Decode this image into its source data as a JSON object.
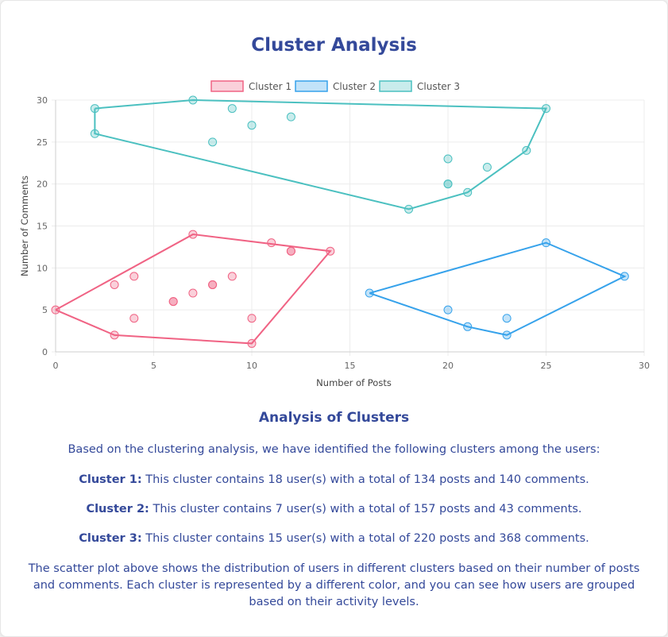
{
  "page": {
    "title": "Cluster Analysis",
    "analysis_heading": "Analysis of Clusters",
    "intro": "Based on the clustering analysis, we have identified the following clusters among the users:",
    "clusters": [
      {
        "label": "Cluster 1:",
        "text": "This cluster contains 18 user(s) with a total of 134 posts and 140 comments."
      },
      {
        "label": "Cluster 2:",
        "text": "This cluster contains 7 user(s) with a total of 157 posts and 43 comments."
      },
      {
        "label": "Cluster 3:",
        "text": "This cluster contains 15 user(s) with a total of 220 posts and 368 comments."
      }
    ],
    "conclusion": "The scatter plot above shows the distribution of users in different clusters based on their number of posts and comments. Each cluster is represented by a different color, and you can see how users are grouped based on their activity levels."
  },
  "chart_data": {
    "type": "scatter",
    "xlabel": "Number of Posts",
    "ylabel": "Number of Comments",
    "xlim": [
      0,
      30
    ],
    "ylim": [
      0,
      30
    ],
    "xticks": [
      0,
      5,
      10,
      15,
      20,
      25,
      30
    ],
    "yticks": [
      0,
      5,
      10,
      15,
      20,
      25,
      30
    ],
    "grid": true,
    "legend_position": "top",
    "series": [
      {
        "name": "Cluster 1",
        "color": "#f06384",
        "fill": "rgba(240,99,132,0.3)",
        "points": [
          [
            0,
            5
          ],
          [
            3,
            2
          ],
          [
            3,
            8
          ],
          [
            4,
            9
          ],
          [
            4,
            4
          ],
          [
            6,
            6
          ],
          [
            6,
            6
          ],
          [
            7,
            7
          ],
          [
            7,
            14
          ],
          [
            8,
            8
          ],
          [
            8,
            8
          ],
          [
            9,
            9
          ],
          [
            10,
            1
          ],
          [
            10,
            4
          ],
          [
            11,
            13
          ],
          [
            12,
            12
          ],
          [
            12,
            12
          ],
          [
            14,
            12
          ]
        ],
        "hull": [
          [
            0,
            5
          ],
          [
            3,
            2
          ],
          [
            10,
            1
          ],
          [
            14,
            12
          ],
          [
            7,
            14
          ],
          [
            0,
            5
          ]
        ]
      },
      {
        "name": "Cluster 2",
        "color": "#36a2eb",
        "fill": "rgba(54,162,235,0.3)",
        "points": [
          [
            16,
            7
          ],
          [
            20,
            5
          ],
          [
            21,
            3
          ],
          [
            23,
            2
          ],
          [
            23,
            4
          ],
          [
            25,
            13
          ],
          [
            29,
            9
          ]
        ],
        "hull": [
          [
            16,
            7
          ],
          [
            21,
            3
          ],
          [
            23,
            2
          ],
          [
            29,
            9
          ],
          [
            25,
            13
          ],
          [
            16,
            7
          ]
        ]
      },
      {
        "name": "Cluster 3",
        "color": "#4bc0c0",
        "fill": "rgba(75,192,192,0.3)",
        "points": [
          [
            2,
            29
          ],
          [
            2,
            26
          ],
          [
            7,
            30
          ],
          [
            8,
            25
          ],
          [
            9,
            29
          ],
          [
            10,
            27
          ],
          [
            12,
            28
          ],
          [
            18,
            17
          ],
          [
            20,
            23
          ],
          [
            20,
            20
          ],
          [
            20,
            20
          ],
          [
            21,
            19
          ],
          [
            22,
            22
          ],
          [
            24,
            24
          ],
          [
            25,
            29
          ]
        ],
        "hull": [
          [
            2,
            29
          ],
          [
            7,
            30
          ],
          [
            25,
            29
          ],
          [
            24,
            24
          ],
          [
            21,
            19
          ],
          [
            18,
            17
          ],
          [
            2,
            26
          ],
          [
            2,
            29
          ]
        ]
      }
    ]
  }
}
